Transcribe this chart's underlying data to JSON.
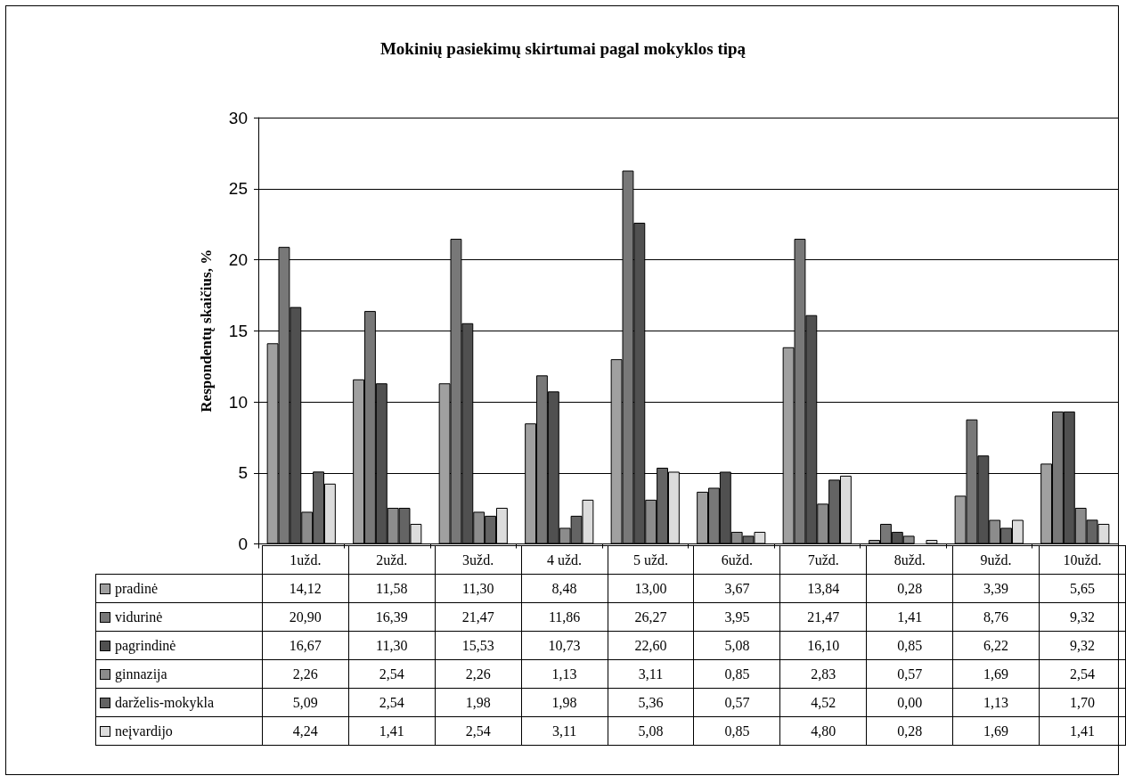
{
  "chart_data": {
    "type": "bar",
    "title": "Mokinių pasiekimų skirtumai pagal mokyklos tipą",
    "ylabel": "Respondentų skaičius, %",
    "categories": [
      "1užd.",
      "2užd.",
      "3užd.",
      "4 užd.",
      "5 užd.",
      "6užd.",
      "7užd.",
      "8užd.",
      "9užd.",
      "10užd."
    ],
    "ylim": [
      0,
      30
    ],
    "yticks": [
      0,
      5,
      10,
      15,
      20,
      25,
      30
    ],
    "grid": "y",
    "legend": "bottom",
    "series": [
      {
        "name": "pradinė",
        "color": "#a0a0a0",
        "values": [
          14.12,
          11.58,
          11.3,
          8.48,
          13.0,
          3.67,
          13.84,
          0.28,
          3.39,
          5.65
        ],
        "value_labels": [
          "14,12",
          "11,58",
          "11,30",
          "8,48",
          "13,00",
          "3,67",
          "13,84",
          "0,28",
          "3,39",
          "5,65"
        ]
      },
      {
        "name": "vidurinė",
        "color": "#787878",
        "values": [
          20.9,
          16.39,
          21.47,
          11.86,
          26.27,
          3.95,
          21.47,
          1.41,
          8.76,
          9.32
        ],
        "value_labels": [
          "20,90",
          "16,39",
          "21,47",
          "11,86",
          "26,27",
          "3,95",
          "21,47",
          "1,41",
          "8,76",
          "9,32"
        ]
      },
      {
        "name": "pagrindinė",
        "color": "#505050",
        "values": [
          16.67,
          11.3,
          15.53,
          10.73,
          22.6,
          5.08,
          16.1,
          0.85,
          6.22,
          9.32
        ],
        "value_labels": [
          "16,67",
          "11,30",
          "15,53",
          "10,73",
          "22,60",
          "5,08",
          "16,10",
          "0,85",
          "6,22",
          "9,32"
        ]
      },
      {
        "name": "ginnazija",
        "color": "#8c8c8c",
        "values": [
          2.26,
          2.54,
          2.26,
          1.13,
          3.11,
          0.85,
          2.83,
          0.57,
          1.69,
          2.54
        ],
        "value_labels": [
          "2,26",
          "2,54",
          "2,26",
          "1,13",
          "3,11",
          "0,85",
          "2,83",
          "0,57",
          "1,69",
          "2,54"
        ]
      },
      {
        "name": "darželis-mokykla",
        "color": "#646464",
        "values": [
          5.09,
          2.54,
          1.98,
          1.98,
          5.36,
          0.57,
          4.52,
          0.0,
          1.13,
          1.7
        ],
        "value_labels": [
          "5,09",
          "2,54",
          "1,98",
          "1,98",
          "5,36",
          "0,57",
          "4,52",
          "0,00",
          "1,13",
          "1,70"
        ]
      },
      {
        "name": "neįvardijo",
        "color": "#dcdcdc",
        "values": [
          4.24,
          1.41,
          2.54,
          3.11,
          5.08,
          0.85,
          4.8,
          0.28,
          1.69,
          1.41
        ],
        "value_labels": [
          "4,24",
          "1,41",
          "2,54",
          "3,11",
          "5,08",
          "0,85",
          "4,80",
          "0,28",
          "1,69",
          "1,41"
        ]
      }
    ]
  }
}
